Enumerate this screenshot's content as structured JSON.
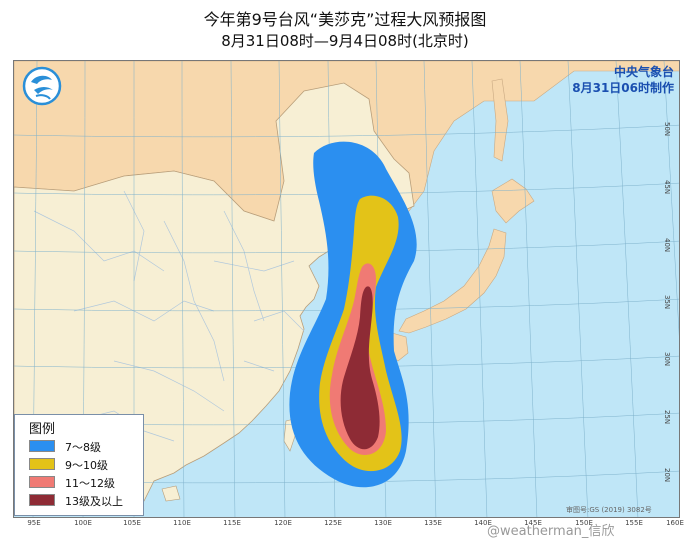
{
  "title": {
    "line1": "今年第9号台风“美莎克”过程大风预报图",
    "line2": "8月31日08时—9月4日08时(北京时)"
  },
  "issuer": {
    "name": "中央气象台",
    "time": "8月31日06时制作"
  },
  "legend": {
    "title": "图例",
    "items": [
      {
        "label": "7～8级",
        "color": "#2b8ff0"
      },
      {
        "label": "9～10级",
        "color": "#e3c318"
      },
      {
        "label": "11～12级",
        "color": "#f07a74"
      },
      {
        "label": "13级及以上",
        "color": "#8e2b35"
      }
    ]
  },
  "axes": {
    "longitudes": [
      "95E",
      "100E",
      "105E",
      "110E",
      "115E",
      "120E",
      "125E",
      "130E",
      "135E",
      "140E",
      "145E",
      "150E",
      "155E",
      "160E"
    ],
    "latitudes": [
      "20N",
      "25N",
      "30N",
      "35N",
      "40N",
      "45N",
      "50N"
    ]
  },
  "approval_number": "审图号:GS (2019) 3082号",
  "watermark": "@weatherman_信欣",
  "colors": {
    "sea": "#bfe6f7",
    "china_land": "#f7efd4",
    "foreign_land": "#f7d8ad",
    "border": "#b1c8dc"
  },
  "icons": {
    "logo": "cma-logo-icon"
  }
}
